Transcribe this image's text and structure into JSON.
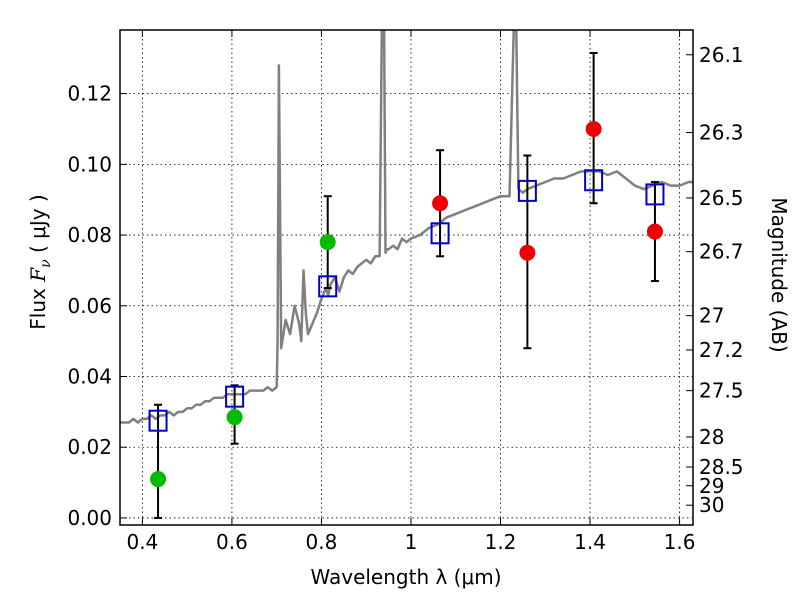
{
  "chart_data": {
    "type": "scatter",
    "xlabel": "Wavelength  λ (μm)",
    "ylabel": "Flux  F_ν  ( μJy )",
    "ylabel_parts": {
      "prefix": "Flux  ",
      "var": "F",
      "sub": "ν",
      "unit": "  ( μJy )"
    },
    "y2label": "Magnitude (AB)",
    "xlim": [
      0.35,
      1.63
    ],
    "ylim": [
      -0.002,
      0.138
    ],
    "x_ticks": [
      0.4,
      0.6,
      0.8,
      1.0,
      1.2,
      1.4,
      1.6
    ],
    "x_tick_labels": [
      "0.4",
      "0.6",
      "0.8",
      "1",
      "1.2",
      "1.4",
      "1.6"
    ],
    "y_ticks": [
      0.0,
      0.02,
      0.04,
      0.06,
      0.08,
      0.1,
      0.12
    ],
    "y_tick_labels": [
      "0.00",
      "0.02",
      "0.04",
      "0.06",
      "0.08",
      "0.10",
      "0.12"
    ],
    "y2_ticks": [
      {
        "label": "26.1",
        "flux": 0.131
      },
      {
        "label": "26.3",
        "flux": 0.109
      },
      {
        "label": "26.5",
        "flux": 0.0905
      },
      {
        "label": "26.7",
        "flux": 0.0753
      },
      {
        "label": "27",
        "flux": 0.0572
      },
      {
        "label": "27.2",
        "flux": 0.0475
      },
      {
        "label": "27.5",
        "flux": 0.036
      },
      {
        "label": "28",
        "flux": 0.0229
      },
      {
        "label": "28.5",
        "flux": 0.0144
      },
      {
        "label": "29",
        "flux": 0.0091
      },
      {
        "label": "30",
        "flux": 0.0036
      }
    ],
    "grid": true,
    "colors": {
      "model": "#808080",
      "green": "#00bb00",
      "red": "#ee0000",
      "square": "#0000cc",
      "errorbar": "#000000"
    },
    "model_spectrum": {
      "x": [
        0.35,
        0.36,
        0.37,
        0.38,
        0.39,
        0.4,
        0.41,
        0.42,
        0.43,
        0.44,
        0.45,
        0.46,
        0.47,
        0.48,
        0.49,
        0.5,
        0.51,
        0.52,
        0.53,
        0.54,
        0.55,
        0.56,
        0.57,
        0.58,
        0.59,
        0.6,
        0.61,
        0.62,
        0.63,
        0.64,
        0.65,
        0.66,
        0.67,
        0.68,
        0.69,
        0.7,
        0.702,
        0.705,
        0.71,
        0.715,
        0.72,
        0.73,
        0.74,
        0.75,
        0.755,
        0.76,
        0.765,
        0.77,
        0.78,
        0.79,
        0.8,
        0.81,
        0.815,
        0.82,
        0.83,
        0.84,
        0.85,
        0.86,
        0.87,
        0.88,
        0.89,
        0.9,
        0.91,
        0.92,
        0.93,
        0.935,
        0.94,
        0.943,
        0.946,
        0.95,
        0.96,
        0.97,
        0.98,
        0.99,
        1.0,
        1.02,
        1.04,
        1.06,
        1.08,
        1.1,
        1.12,
        1.14,
        1.16,
        1.18,
        1.2,
        1.22,
        1.23,
        1.235,
        1.24,
        1.25,
        1.26,
        1.28,
        1.3,
        1.32,
        1.34,
        1.36,
        1.38,
        1.4,
        1.42,
        1.44,
        1.46,
        1.48,
        1.5,
        1.52,
        1.54,
        1.56,
        1.58,
        1.6,
        1.62,
        1.63
      ],
      "y": [
        0.027,
        0.027,
        0.027,
        0.028,
        0.027,
        0.028,
        0.028,
        0.029,
        0.028,
        0.029,
        0.029,
        0.03,
        0.029,
        0.03,
        0.03,
        0.031,
        0.031,
        0.032,
        0.032,
        0.033,
        0.033,
        0.034,
        0.034,
        0.034,
        0.035,
        0.035,
        0.035,
        0.035,
        0.035,
        0.036,
        0.036,
        0.036,
        0.036,
        0.037,
        0.036,
        0.037,
        0.05,
        0.128,
        0.048,
        0.052,
        0.056,
        0.052,
        0.06,
        0.055,
        0.05,
        0.07,
        0.058,
        0.052,
        0.055,
        0.058,
        0.062,
        0.065,
        0.063,
        0.066,
        0.068,
        0.064,
        0.068,
        0.07,
        0.069,
        0.071,
        0.072,
        0.073,
        0.072,
        0.074,
        0.074,
        0.14,
        0.14,
        0.075,
        0.076,
        0.076,
        0.077,
        0.076,
        0.079,
        0.078,
        0.079,
        0.08,
        0.082,
        0.083,
        0.085,
        0.086,
        0.087,
        0.088,
        0.089,
        0.09,
        0.091,
        0.091,
        0.14,
        0.14,
        0.093,
        0.092,
        0.093,
        0.094,
        0.095,
        0.096,
        0.096,
        0.097,
        0.098,
        0.098,
        0.098,
        0.097,
        0.098,
        0.096,
        0.094,
        0.093,
        0.094,
        0.095,
        0.094,
        0.094,
        0.095,
        0.095
      ]
    },
    "observed_green": [
      {
        "x": 0.435,
        "y": 0.011,
        "err_lo": 0.011,
        "err_hi": 0.021
      },
      {
        "x": 0.606,
        "y": 0.0285,
        "err_lo": 0.0075,
        "err_hi": 0.009
      },
      {
        "x": 0.814,
        "y": 0.078,
        "err_lo": 0.013,
        "err_hi": 0.013
      }
    ],
    "observed_red": [
      {
        "x": 1.065,
        "y": 0.089,
        "err_lo": 0.015,
        "err_hi": 0.015
      },
      {
        "x": 1.26,
        "y": 0.075,
        "err_lo": 0.027,
        "err_hi": 0.0275
      },
      {
        "x": 1.408,
        "y": 0.11,
        "err_lo": 0.021,
        "err_hi": 0.0215
      },
      {
        "x": 1.545,
        "y": 0.081,
        "err_lo": 0.014,
        "err_hi": 0.014
      }
    ],
    "model_photometry_squares": [
      {
        "x": 0.435,
        "y": 0.0275
      },
      {
        "x": 0.606,
        "y": 0.0343
      },
      {
        "x": 0.814,
        "y": 0.0655
      },
      {
        "x": 1.065,
        "y": 0.0805
      },
      {
        "x": 1.26,
        "y": 0.0925
      },
      {
        "x": 1.408,
        "y": 0.0955
      },
      {
        "x": 1.545,
        "y": 0.0915
      }
    ]
  }
}
